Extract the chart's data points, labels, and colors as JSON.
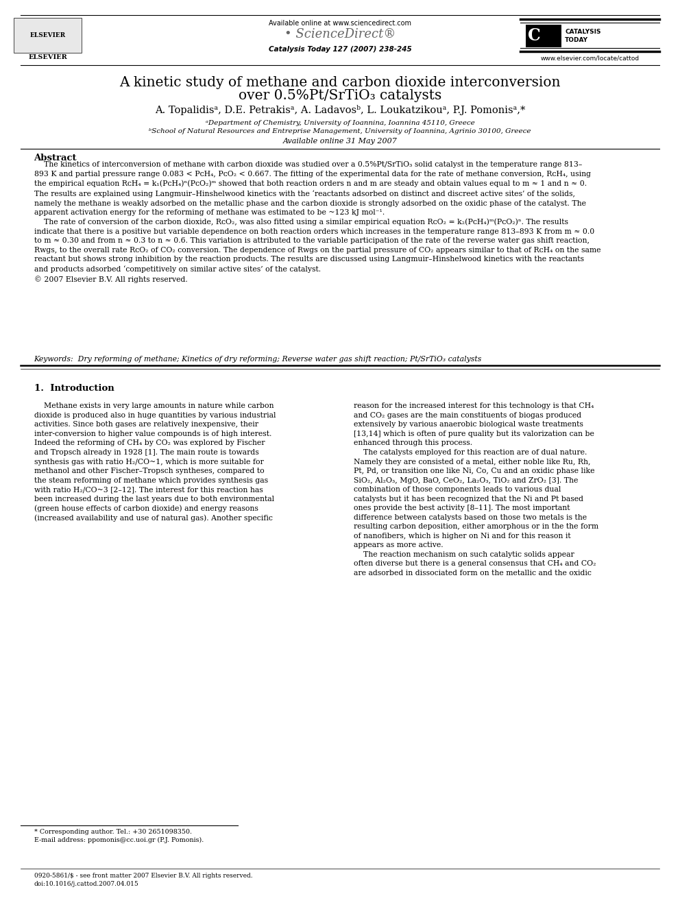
{
  "page_width": 9.92,
  "page_height": 13.23,
  "bg_color": "#ffffff",
  "available_online_header": "Available online at www.sciencedirect.com",
  "journal_info": "Catalysis Today 127 (2007) 238-245",
  "website": "www.elsevier.com/locate/cattod",
  "available_online_date": "Available online 31 May 2007",
  "abstract_title": "Abstract",
  "keywords_label": "Keywords:",
  "section1_title": "1.  Introduction",
  "footer_left_line1": "* Corresponding author. Tel.: +30 2651098350.",
  "footer_left_line2": "E-mail address: ppomonis@cc.uoi.gr (P.J. Pomonis).",
  "footer_bottom_line1": "0920-5861/$ - see front matter 2007 Elsevier B.V. All rights reserved.",
  "footer_bottom_line2": "doi:10.1016/j.cattod.2007.04.015"
}
